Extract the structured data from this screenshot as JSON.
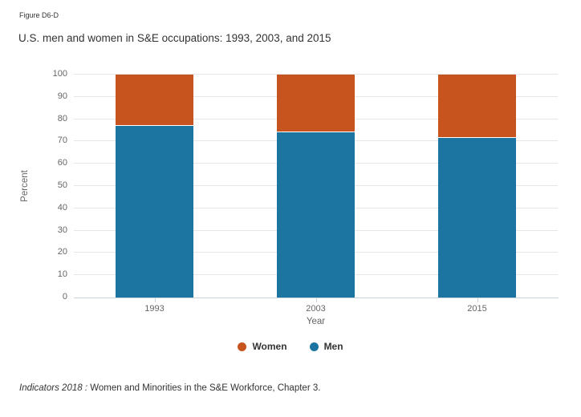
{
  "figure_label": "Figure D6-D",
  "title": "U.S. men and women in S&E occupations: 1993, 2003, and 2015",
  "chart_data": {
    "type": "bar",
    "stacked": true,
    "title": "U.S. men and women in S&E occupations: 1993, 2003, and 2015",
    "categories": [
      "1993",
      "2003",
      "2015"
    ],
    "series": [
      {
        "name": "Men",
        "color": "#1b75a0",
        "values": [
          77,
          74,
          71.5
        ]
      },
      {
        "name": "Women",
        "color": "#c7541e",
        "values": [
          23,
          26,
          28.5
        ]
      }
    ],
    "xlabel": "Year",
    "ylabel": "Percent",
    "ylim": [
      0,
      100
    ],
    "yticks": [
      0,
      10,
      20,
      30,
      40,
      50,
      60,
      70,
      80,
      90,
      100
    ],
    "grid": true,
    "legend_position": "bottom",
    "legend": [
      {
        "label": "Women",
        "color": "#c7541e"
      },
      {
        "label": "Men",
        "color": "#1b75a0"
      }
    ]
  },
  "footer": {
    "source_italic": "Indicators 2018 :",
    "source_text": " Women and Minorities in the S&E Workforce, Chapter 3."
  }
}
